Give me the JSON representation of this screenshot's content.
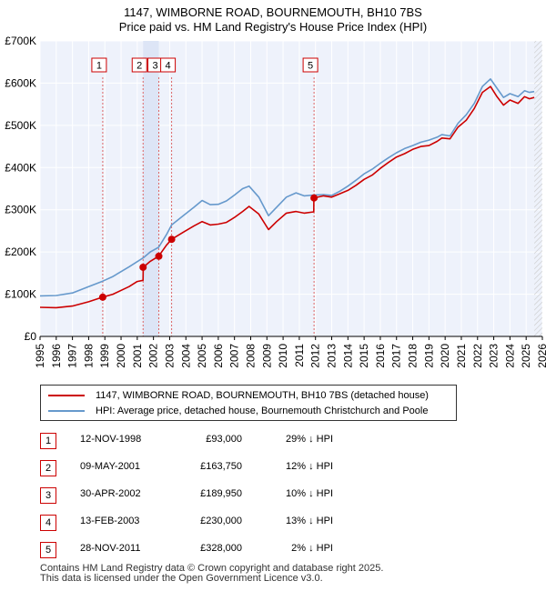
{
  "chart_data": {
    "type": "line",
    "title": "1147, WIMBORNE ROAD, BOURNEMOUTH, BH10 7BS",
    "subtitle": "Price paid vs. HM Land Registry's House Price Index (HPI)",
    "ylim": [
      0,
      700000
    ],
    "xlim": [
      1995,
      2026
    ],
    "y_ticks": [
      {
        "value": 0,
        "label": "£0"
      },
      {
        "value": 100000,
        "label": "£100K"
      },
      {
        "value": 200000,
        "label": "£200K"
      },
      {
        "value": 300000,
        "label": "£300K"
      },
      {
        "value": 400000,
        "label": "£400K"
      },
      {
        "value": 500000,
        "label": "£500K"
      },
      {
        "value": 600000,
        "label": "£600K"
      },
      {
        "value": 700000,
        "label": "£700K"
      }
    ],
    "x_ticks": [
      "1995",
      "1996",
      "1997",
      "1998",
      "1999",
      "2000",
      "2001",
      "2002",
      "2003",
      "2004",
      "2005",
      "2006",
      "2007",
      "2008",
      "2009",
      "2010",
      "2011",
      "2012",
      "2013",
      "2014",
      "2015",
      "2016",
      "2017",
      "2018",
      "2019",
      "2020",
      "2021",
      "2022",
      "2023",
      "2024",
      "2025",
      "2026"
    ],
    "series": [
      {
        "name": "1147, WIMBORNE ROAD, BOURNEMOUTH, BH10 7BS (detached house)",
        "color": "#cc0000",
        "points": [
          [
            1995.0,
            69000
          ],
          [
            1996.0,
            68000
          ],
          [
            1997.0,
            72000
          ],
          [
            1998.0,
            82000
          ],
          [
            1998.87,
            93000
          ],
          [
            1999.5,
            100000
          ],
          [
            2000.5,
            118000
          ],
          [
            2001.0,
            130000
          ],
          [
            2001.36,
            133000
          ],
          [
            2001.37,
            163750
          ],
          [
            2001.8,
            178000
          ],
          [
            2002.32,
            189950
          ],
          [
            2002.8,
            216000
          ],
          [
            2003.12,
            230000
          ],
          [
            2003.8,
            246000
          ],
          [
            2004.5,
            262000
          ],
          [
            2005.0,
            272000
          ],
          [
            2005.5,
            264000
          ],
          [
            2006.0,
            266000
          ],
          [
            2006.5,
            270000
          ],
          [
            2007.0,
            282000
          ],
          [
            2007.5,
            296000
          ],
          [
            2007.9,
            308000
          ],
          [
            2008.5,
            290000
          ],
          [
            2009.1,
            253000
          ],
          [
            2009.6,
            272000
          ],
          [
            2010.2,
            292000
          ],
          [
            2010.8,
            296000
          ],
          [
            2011.3,
            292000
          ],
          [
            2011.89,
            295000
          ],
          [
            2011.9,
            328000
          ],
          [
            2012.5,
            333000
          ],
          [
            2013.0,
            330000
          ],
          [
            2013.5,
            338000
          ],
          [
            2014.0,
            346000
          ],
          [
            2014.5,
            358000
          ],
          [
            2015.0,
            372000
          ],
          [
            2015.5,
            382000
          ],
          [
            2016.0,
            398000
          ],
          [
            2016.5,
            412000
          ],
          [
            2017.0,
            425000
          ],
          [
            2017.5,
            433000
          ],
          [
            2018.0,
            443000
          ],
          [
            2018.5,
            450000
          ],
          [
            2019.0,
            452000
          ],
          [
            2019.5,
            462000
          ],
          [
            2019.8,
            470000
          ],
          [
            2020.3,
            468000
          ],
          [
            2020.8,
            496000
          ],
          [
            2021.3,
            512000
          ],
          [
            2021.8,
            540000
          ],
          [
            2022.3,
            578000
          ],
          [
            2022.8,
            592000
          ],
          [
            2023.2,
            568000
          ],
          [
            2023.6,
            548000
          ],
          [
            2024.0,
            560000
          ],
          [
            2024.5,
            552000
          ],
          [
            2024.9,
            568000
          ],
          [
            2025.2,
            563000
          ],
          [
            2025.5,
            566000
          ]
        ]
      },
      {
        "name": "HPI: Average price, detached house, Bournemouth Christchurch and Poole",
        "color": "#6699cc",
        "points": [
          [
            1995.0,
            96000
          ],
          [
            1996.0,
            97000
          ],
          [
            1997.0,
            103000
          ],
          [
            1998.0,
            118000
          ],
          [
            1998.87,
            131000
          ],
          [
            1999.5,
            142000
          ],
          [
            2000.5,
            165000
          ],
          [
            2001.37,
            186000
          ],
          [
            2001.8,
            200000
          ],
          [
            2002.32,
            211000
          ],
          [
            2002.8,
            241000
          ],
          [
            2003.12,
            264000
          ],
          [
            2003.8,
            285000
          ],
          [
            2004.5,
            306000
          ],
          [
            2005.0,
            322000
          ],
          [
            2005.5,
            312000
          ],
          [
            2006.0,
            313000
          ],
          [
            2006.5,
            321000
          ],
          [
            2007.0,
            335000
          ],
          [
            2007.5,
            350000
          ],
          [
            2007.9,
            356000
          ],
          [
            2008.5,
            330000
          ],
          [
            2009.1,
            286000
          ],
          [
            2009.6,
            306000
          ],
          [
            2010.2,
            330000
          ],
          [
            2010.8,
            340000
          ],
          [
            2011.3,
            333000
          ],
          [
            2011.9,
            335000
          ],
          [
            2012.5,
            336000
          ],
          [
            2013.0,
            334000
          ],
          [
            2013.5,
            344000
          ],
          [
            2014.0,
            356000
          ],
          [
            2014.5,
            370000
          ],
          [
            2015.0,
            385000
          ],
          [
            2015.5,
            396000
          ],
          [
            2016.0,
            410000
          ],
          [
            2016.5,
            423000
          ],
          [
            2017.0,
            435000
          ],
          [
            2017.5,
            445000
          ],
          [
            2018.0,
            452000
          ],
          [
            2018.5,
            460000
          ],
          [
            2019.0,
            465000
          ],
          [
            2019.5,
            472000
          ],
          [
            2019.8,
            478000
          ],
          [
            2020.3,
            475000
          ],
          [
            2020.8,
            505000
          ],
          [
            2021.3,
            525000
          ],
          [
            2021.8,
            552000
          ],
          [
            2022.3,
            592000
          ],
          [
            2022.8,
            610000
          ],
          [
            2023.2,
            588000
          ],
          [
            2023.6,
            566000
          ],
          [
            2024.0,
            575000
          ],
          [
            2024.5,
            568000
          ],
          [
            2024.9,
            582000
          ],
          [
            2025.2,
            578000
          ],
          [
            2025.5,
            580000
          ]
        ]
      }
    ],
    "sales": [
      {
        "num": "1",
        "x": 1998.87,
        "value": 93000,
        "date": "12-NOV-1998",
        "price": "£93,000",
        "hpi": "29% ↓ HPI"
      },
      {
        "num": "2",
        "x": 2001.36,
        "value": 163750,
        "date": "09-MAY-2001",
        "price": "£163,750",
        "hpi": "12% ↓ HPI"
      },
      {
        "num": "3",
        "x": 2002.33,
        "value": 189950,
        "date": "30-APR-2002",
        "price": "£189,950",
        "hpi": "10% ↓ HPI"
      },
      {
        "num": "4",
        "x": 2003.12,
        "value": 230000,
        "date": "13-FEB-2003",
        "price": "£230,000",
        "hpi": "13% ↓ HPI"
      },
      {
        "num": "5",
        "x": 2011.91,
        "value": 328000,
        "date": "28-NOV-2011",
        "price": "£328,000",
        "hpi": "2% ↓ HPI"
      }
    ],
    "shaded_periods": [
      [
        2001.36,
        2002.33
      ],
      [
        2003.12,
        2003.12
      ]
    ],
    "future_hatch_start": 2025.5
  },
  "footer": {
    "line1": "Contains HM Land Registry data © Crown copyright and database right 2025.",
    "line2": "This data is licensed under the Open Government Licence v3.0."
  }
}
